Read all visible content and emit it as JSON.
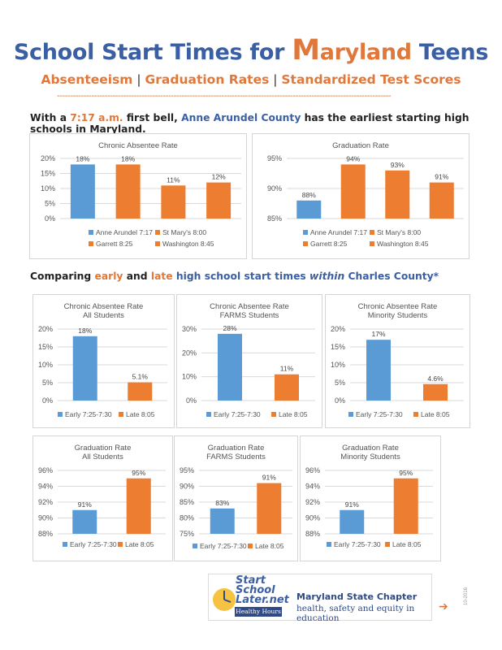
{
  "header": {
    "title_part1": "School Start Times for ",
    "title_m": "M",
    "title_aryland": "aryland",
    "title_part2": " Teens",
    "subtitle_1": "Absenteeism",
    "subtitle_sep": " | ",
    "subtitle_2": "Graduation Rates",
    "subtitle_3": "Standardized Test Scores",
    "dashes": "------------------------------------------------------------------------------------------------------------------------------"
  },
  "intro": {
    "t1": "With a ",
    "t2": "7:17 a.m.",
    "t3": " first bell, ",
    "t4": "Anne Arundel County",
    "t5": " has the earliest starting high schools in Maryland."
  },
  "compare": {
    "t1": "Comparing ",
    "t2": "early",
    "t3": " and ",
    "t4": "late",
    "t5": " high school start times ",
    "t6": "within",
    "t7": " Charles County*"
  },
  "colors": {
    "blue": "#5b9bd5",
    "orange": "#ed7d31",
    "grid": "#d9d9d9"
  },
  "chart_data": [
    {
      "type": "bar",
      "title": [
        "Chronic Absentee Rate"
      ],
      "categories": [
        "Anne Arundel 7:17",
        "St Mary's 8:00",
        "Garrett 8:25",
        "Washington 8:45"
      ],
      "values": [
        18,
        18,
        11,
        12
      ],
      "value_labels": [
        "18%",
        "18%",
        "11%",
        "12%"
      ],
      "colors": [
        "#5b9bd5",
        "#ed7d31",
        "#ed7d31",
        "#ed7d31"
      ],
      "ylim": [
        0,
        20
      ],
      "ticks": [
        0,
        5,
        10,
        15,
        20
      ],
      "tick_labels": [
        "0%",
        "5%",
        "10%",
        "15%",
        "20%"
      ],
      "grid": true,
      "legend": "bottom"
    },
    {
      "type": "bar",
      "title": [
        "Graduation Rate"
      ],
      "categories": [
        "Anne Arundel 7:17",
        "St Mary's 8:00",
        "Garrett 8:25",
        "Washington 8:45"
      ],
      "values": [
        88,
        94,
        93,
        91
      ],
      "value_labels": [
        "88%",
        "94%",
        "93%",
        "91%"
      ],
      "colors": [
        "#5b9bd5",
        "#ed7d31",
        "#ed7d31",
        "#ed7d31"
      ],
      "ylim": [
        85,
        95
      ],
      "ticks": [
        85,
        90,
        95
      ],
      "tick_labels": [
        "85%",
        "90%",
        "95%"
      ],
      "grid": true,
      "legend": "bottom"
    },
    {
      "type": "bar",
      "title": [
        "Chronic Absentee Rate",
        "All Students"
      ],
      "categories": [
        "Early 7:25-7:30",
        "Late 8:05"
      ],
      "values": [
        18,
        5.1
      ],
      "value_labels": [
        "18%",
        "5.1%"
      ],
      "colors": [
        "#5b9bd5",
        "#ed7d31"
      ],
      "ylim": [
        0,
        20
      ],
      "ticks": [
        0,
        5,
        10,
        15,
        20
      ],
      "tick_labels": [
        "0%",
        "5%",
        "10%",
        "15%",
        "20%"
      ],
      "grid": true,
      "legend": "bottom"
    },
    {
      "type": "bar",
      "title": [
        "Chronic Absentee Rate",
        "FARMS Students"
      ],
      "categories": [
        "Early  7:25-7:30",
        "Late 8:05"
      ],
      "values": [
        28,
        11
      ],
      "value_labels": [
        "28%",
        "11%"
      ],
      "colors": [
        "#5b9bd5",
        "#ed7d31"
      ],
      "ylim": [
        0,
        30
      ],
      "ticks": [
        0,
        10,
        20,
        30
      ],
      "tick_labels": [
        "0%",
        "10%",
        "20%",
        "30%"
      ],
      "grid": true,
      "legend": "bottom"
    },
    {
      "type": "bar",
      "title": [
        "Chronic Absentee Rate",
        "Minority Students"
      ],
      "categories": [
        "Early  7:25-7:30",
        "Late 8:05"
      ],
      "values": [
        17,
        4.6
      ],
      "value_labels": [
        "17%",
        "4.6%"
      ],
      "colors": [
        "#5b9bd5",
        "#ed7d31"
      ],
      "ylim": [
        0,
        20
      ],
      "ticks": [
        0,
        5,
        10,
        15,
        20
      ],
      "tick_labels": [
        "0%",
        "5%",
        "10%",
        "15%",
        "20%"
      ],
      "grid": true,
      "legend": "bottom"
    },
    {
      "type": "bar",
      "title": [
        "Graduation Rate",
        "All Students"
      ],
      "categories": [
        "Early 7:25-7:30",
        "Late 8:05"
      ],
      "values": [
        91,
        95
      ],
      "value_labels": [
        "91%",
        "95%"
      ],
      "colors": [
        "#5b9bd5",
        "#ed7d31"
      ],
      "ylim": [
        88,
        96
      ],
      "ticks": [
        88,
        90,
        92,
        94,
        96
      ],
      "tick_labels": [
        "88%",
        "90%",
        "92%",
        "94%",
        "96%"
      ],
      "grid": true,
      "legend": "bottom"
    },
    {
      "type": "bar",
      "title": [
        "Graduation Rate",
        "FARMS Students"
      ],
      "categories": [
        "Early 7:25-7:30",
        "Late 8:05"
      ],
      "values": [
        83,
        91
      ],
      "value_labels": [
        "83%",
        "91%"
      ],
      "colors": [
        "#5b9bd5",
        "#ed7d31"
      ],
      "ylim": [
        75,
        95
      ],
      "ticks": [
        75,
        80,
        85,
        90,
        95
      ],
      "tick_labels": [
        "75%",
        "80%",
        "85%",
        "90%",
        "95%"
      ],
      "grid": true,
      "legend": "bottom"
    },
    {
      "type": "bar",
      "title": [
        "Graduation Rate",
        "Minority Students"
      ],
      "categories": [
        "Early  7:25-7:30",
        "Late 8:05"
      ],
      "values": [
        91,
        95
      ],
      "value_labels": [
        "91%",
        "95%"
      ],
      "colors": [
        "#5b9bd5",
        "#ed7d31"
      ],
      "ylim": [
        88,
        96
      ],
      "ticks": [
        88,
        90,
        92,
        94,
        96
      ],
      "tick_labels": [
        "88%",
        "90%",
        "92%",
        "94%",
        "96%"
      ],
      "grid": true,
      "legend": "bottom"
    }
  ],
  "logo": {
    "line1": "Start",
    "line2": "School",
    "line3": "Later.net",
    "badge": "Healthy Hours",
    "chapter": "Maryland State Chapter",
    "tagline": "health, safety and equity in education"
  },
  "footer": {
    "arrow": "➔",
    "datecode": "10-2016"
  }
}
